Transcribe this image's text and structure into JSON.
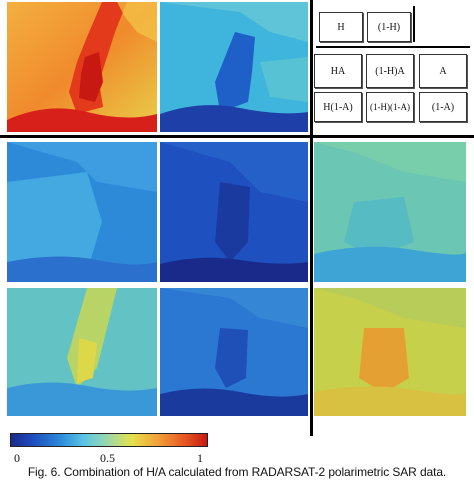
{
  "colors": {
    "accent": "#c41a12",
    "blue_dark": "#1a2a8a",
    "cyan": "#2c8ad8",
    "yellow": "#e6e04a"
  },
  "legend": {
    "h": "H",
    "one_minus_h": "(1-H)",
    "ha": "HA",
    "one_minus_h_a": "(1-H)A",
    "a": "A",
    "h_one_minus_a": "H(1-A)",
    "one_minus_h_one_minus_a": "(1-H)(1-A)",
    "one_minus_a": "(1-A)"
  },
  "colorbar": {
    "tick_min": "0",
    "tick_mid": "0.5",
    "tick_max": "1"
  },
  "caption": "Fig. 6.  Combination of H/A calculated from RADARSAT-2 polarimetric SAR data."
}
